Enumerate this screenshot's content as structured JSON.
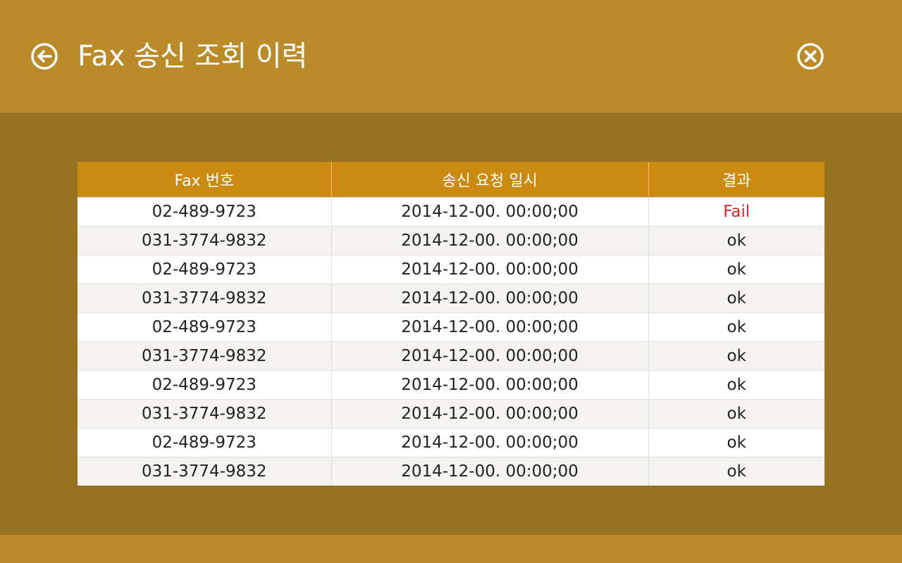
{
  "header": {
    "title": "Fax 송신 조회 이력",
    "back_icon": "back-arrow-circle-icon",
    "close_icon": "close-circle-icon",
    "bg_color": "#bc8b29"
  },
  "table": {
    "columns": [
      "Fax 번호",
      "송신 요청 일시",
      "결과"
    ],
    "rows": [
      [
        "02-489-9723",
        "2014-12-00. 00:00;00",
        "Fail"
      ],
      [
        "031-3774-9832",
        "2014-12-00. 00:00;00",
        "ok"
      ],
      [
        "02-489-9723",
        "2014-12-00. 00:00;00",
        "ok"
      ],
      [
        "031-3774-9832",
        "2014-12-00. 00:00;00",
        "ok"
      ],
      [
        "02-489-9723",
        "2014-12-00. 00:00;00",
        "ok"
      ],
      [
        "031-3774-9832",
        "2014-12-00. 00:00;00",
        "ok"
      ],
      [
        "02-489-9723",
        "2014-12-00. 00:00;00",
        "ok"
      ],
      [
        "031-3774-9832",
        "2014-12-00. 00:00;00",
        "ok"
      ],
      [
        "02-489-9723",
        "2014-12-00. 00:00;00",
        "ok"
      ],
      [
        "031-3774-9832",
        "2014-12-00. 00:00;00",
        "ok"
      ]
    ],
    "header_color": "#ca8b10",
    "fail_color": "#e0242e"
  },
  "colors": {
    "background": "#967220",
    "footer": "#bc8b29"
  }
}
